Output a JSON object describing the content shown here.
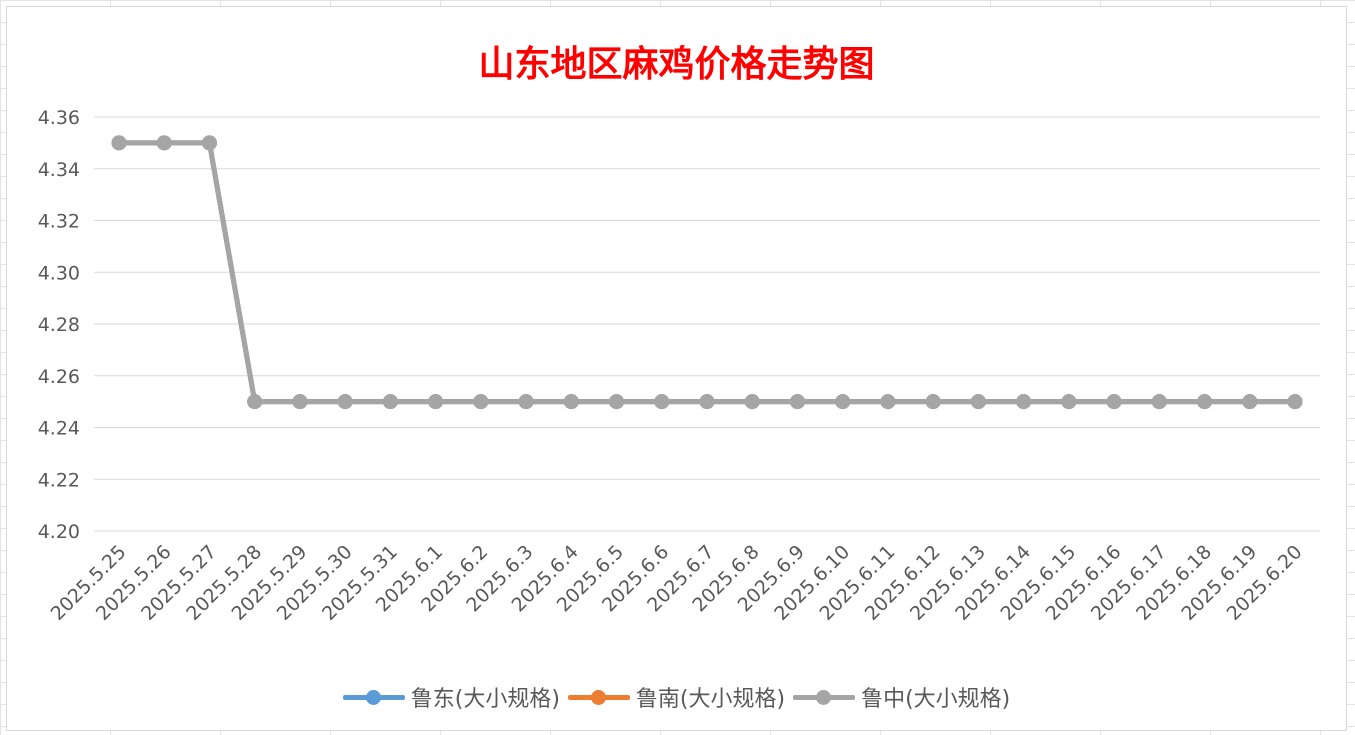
{
  "chart_data": {
    "type": "line",
    "title": "山东地区麻鸡价格走势图",
    "xlabel": "",
    "ylabel": "",
    "ylim": [
      4.2,
      4.36
    ],
    "yticks": [
      "4.36",
      "4.34",
      "4.32",
      "4.30",
      "4.28",
      "4.26",
      "4.24",
      "4.22",
      "4.20"
    ],
    "categories": [
      "2025.5.25",
      "2025.5.26",
      "2025.5.27",
      "2025.5.28",
      "2025.5.29",
      "2025.5.30",
      "2025.5.31",
      "2025.6.1",
      "2025.6.2",
      "2025.6.3",
      "2025.6.4",
      "2025.6.5",
      "2025.6.6",
      "2025.6.7",
      "2025.6.8",
      "2025.6.9",
      "2025.6.10",
      "2025.6.11",
      "2025.6.12",
      "2025.6.13",
      "2025.6.14",
      "2025.6.15",
      "2025.6.16",
      "2025.6.17",
      "2025.6.18",
      "2025.6.19",
      "2025.6.20"
    ],
    "grid": true,
    "legend_position": "bottom",
    "series": [
      {
        "name": "鲁东(大小规格)",
        "color": "#5b9bd5",
        "values": [
          4.35,
          4.35,
          4.35,
          4.25,
          4.25,
          4.25,
          4.25,
          4.25,
          4.25,
          4.25,
          4.25,
          4.25,
          4.25,
          4.25,
          4.25,
          4.25,
          4.25,
          4.25,
          4.25,
          4.25,
          4.25,
          4.25,
          4.25,
          4.25,
          4.25,
          4.25,
          4.25
        ]
      },
      {
        "name": "鲁南(大小规格)",
        "color": "#ed7d31",
        "values": [
          4.35,
          4.35,
          4.35,
          4.25,
          4.25,
          4.25,
          4.25,
          4.25,
          4.25,
          4.25,
          4.25,
          4.25,
          4.25,
          4.25,
          4.25,
          4.25,
          4.25,
          4.25,
          4.25,
          4.25,
          4.25,
          4.25,
          4.25,
          4.25,
          4.25,
          4.25,
          4.25
        ]
      },
      {
        "name": "鲁中(大小规格)",
        "color": "#a5a5a5",
        "values": [
          4.35,
          4.35,
          4.35,
          4.25,
          4.25,
          4.25,
          4.25,
          4.25,
          4.25,
          4.25,
          4.25,
          4.25,
          4.25,
          4.25,
          4.25,
          4.25,
          4.25,
          4.25,
          4.25,
          4.25,
          4.25,
          4.25,
          4.25,
          4.25,
          4.25,
          4.25,
          4.25
        ]
      }
    ]
  }
}
